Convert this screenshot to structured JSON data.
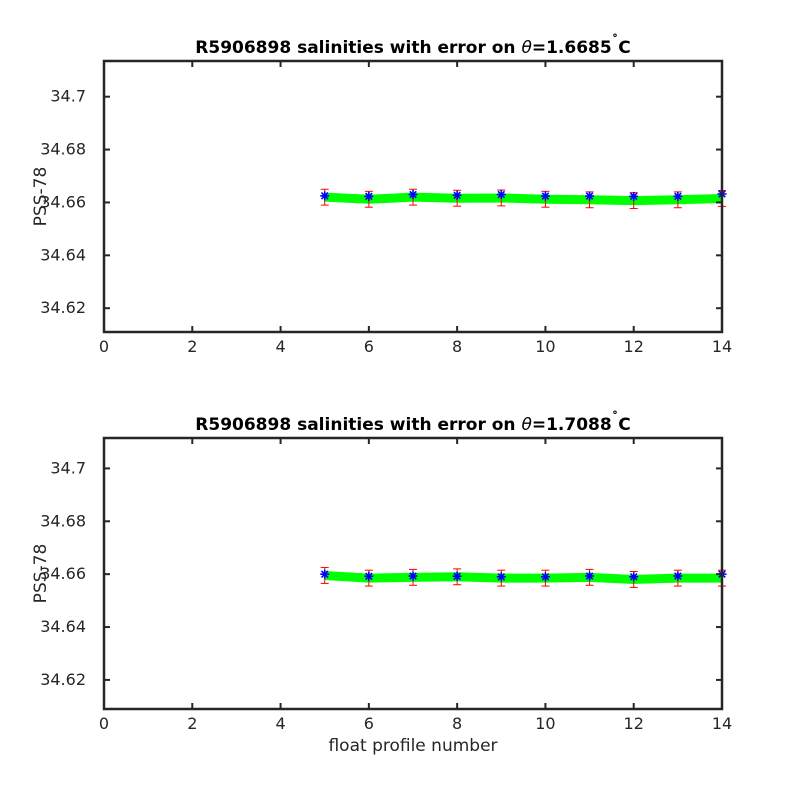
{
  "chart_data": [
    {
      "type": "scatter",
      "title_prefix": "R5906898 salinities with error on ",
      "title_symbol": "θ",
      "title_suffix": "=1.6685",
      "title_degree": "˚",
      "title_unit": "C",
      "xlabel": "",
      "ylabel": "PSS-78",
      "xlim": [
        0,
        14
      ],
      "ylim": [
        34.611,
        34.7135
      ],
      "xticks": [
        "0",
        "2",
        "4",
        "6",
        "8",
        "10",
        "12",
        "14"
      ],
      "yticks": [
        "34.62",
        "34.64",
        "34.66",
        "34.68",
        "34.7"
      ],
      "x": [
        5,
        6,
        7,
        8,
        9,
        10,
        11,
        12,
        13,
        14
      ],
      "float_salinity": [
        34.6625,
        34.6623,
        34.663,
        34.6627,
        34.663,
        34.6624,
        34.6624,
        34.6623,
        34.6623,
        34.6632
      ],
      "float_error": [
        0.003,
        0.003,
        0.003,
        0.003,
        0.003,
        0.003,
        0.003,
        0.003,
        0.003,
        0.003
      ],
      "climatology_salinity": [
        34.662,
        34.6612,
        34.662,
        34.6616,
        34.6617,
        34.6612,
        34.661,
        34.6607,
        34.661,
        34.6615
      ],
      "colors": {
        "climatology": "#00ff00",
        "float": "#0000ff",
        "error": "#ff0000"
      }
    },
    {
      "type": "scatter",
      "title_prefix": "R5906898 salinities with error on ",
      "title_symbol": "θ",
      "title_suffix": "=1.7088",
      "title_degree": "˚",
      "title_unit": "C",
      "xlabel": "float profile number",
      "ylabel": "PSS-78",
      "xlim": [
        0,
        14
      ],
      "ylim": [
        34.609,
        34.7115
      ],
      "xticks": [
        "0",
        "2",
        "4",
        "6",
        "8",
        "10",
        "12",
        "14"
      ],
      "yticks": [
        "34.62",
        "34.64",
        "34.66",
        "34.68",
        "34.7"
      ],
      "x": [
        5,
        6,
        7,
        8,
        9,
        10,
        11,
        12,
        13,
        14
      ],
      "float_salinity": [
        34.66,
        34.6592,
        34.6593,
        34.6592,
        34.659,
        34.659,
        34.6593,
        34.659,
        34.6593,
        34.66
      ],
      "float_error": [
        0.003,
        0.003,
        0.003,
        0.003,
        0.003,
        0.003,
        0.003,
        0.003,
        0.003,
        0.003
      ],
      "climatology_salinity": [
        34.6595,
        34.6585,
        34.6588,
        34.659,
        34.6585,
        34.6585,
        34.6588,
        34.658,
        34.6585,
        34.6585
      ],
      "colors": {
        "climatology": "#00ff00",
        "float": "#0000ff",
        "error": "#ff0000"
      }
    }
  ]
}
